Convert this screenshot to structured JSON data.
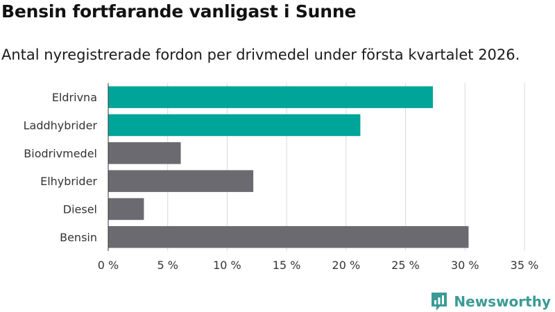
{
  "title": "Bensin fortfarande vanligast i Sunne",
  "subtitle": "Antal nyregistrerade fordon per drivmedel under första kvartalet 2026.",
  "brand": {
    "name": "Newsworthy",
    "logo": "newsworthy-logo-icon"
  },
  "colors": {
    "highlight": "#00a599",
    "default": "#6b6a70",
    "grid": "#d9d9d9",
    "brand": "#3a9a95"
  },
  "chart_data": {
    "type": "bar",
    "orientation": "horizontal",
    "title": "Bensin fortfarande vanligast i Sunne",
    "subtitle": "Antal nyregistrerade fordon per drivmedel under första kvartalet 2026.",
    "categories": [
      "Eldrivna",
      "Laddhybrider",
      "Biodrivmedel",
      "Elhybrider",
      "Diesel",
      "Bensin"
    ],
    "values": [
      27.3,
      21.2,
      6.1,
      12.2,
      3.0,
      30.3
    ],
    "highlighted": [
      true,
      true,
      false,
      false,
      false,
      false
    ],
    "xlim": [
      0,
      35
    ],
    "xticks": [
      0,
      5,
      10,
      15,
      20,
      25,
      30,
      35
    ],
    "tick_suffix": " %",
    "grid": true,
    "xlabel": "",
    "ylabel": ""
  }
}
